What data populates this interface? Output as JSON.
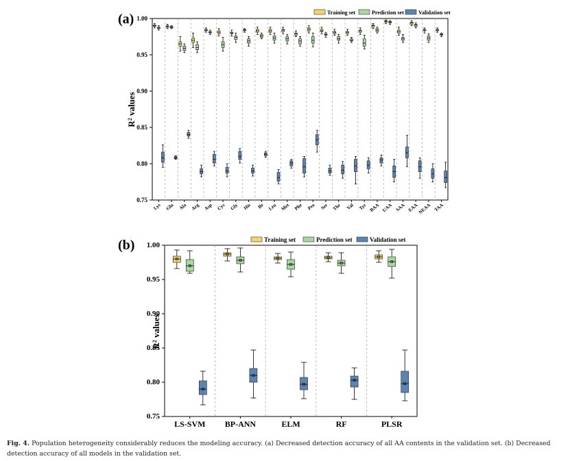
{
  "figure": {
    "caption_lead": "Fig. 4.",
    "caption_text": "Population heterogeneity considerably reduces the modeling accuracy. (a) Decreased detection accuracy of all AA contents in the validation set. (b) Decreased detection accuracy of all models in the validation set."
  },
  "colors": {
    "training": "#f2d46b",
    "prediction": "#a8d8a0",
    "validation": "#5b83b3",
    "axis": "#000000",
    "divider": "#aaaaaa"
  },
  "chart_data": [
    {
      "type": "box",
      "panel": "(a)",
      "ylabel": "R² values",
      "ylabel_base": "R",
      "ylabel_sup": "2",
      "ylabel_rest": " values",
      "ylim": [
        0.75,
        1.0
      ],
      "yticks": [
        "0.75",
        "0.80",
        "0.85",
        "0.90",
        "0.95",
        "1.00"
      ],
      "legend": [
        "Training set",
        "Prediction set",
        "Validation set"
      ],
      "categories": [
        "Lys",
        "Glu",
        "Ala",
        "Arg",
        "Asp",
        "Cys",
        "Gly",
        "His",
        "Ile",
        "Leu",
        "Met",
        "Phe",
        "Pro",
        "Ser",
        "Thr",
        "Val",
        "Tyr",
        "BAA",
        "UAA",
        "SAA",
        "EAA",
        "NEAA",
        "TAA"
      ],
      "series": [
        {
          "name": "Training set",
          "boxes": [
            [
              0.987,
              0.989,
              0.99,
              0.991,
              0.993
            ],
            [
              0.986,
              0.988,
              0.989,
              0.99,
              0.992
            ],
            [
              0.955,
              0.962,
              0.965,
              0.968,
              0.975
            ],
            [
              0.96,
              0.967,
              0.97,
              0.973,
              0.98
            ],
            [
              0.981,
              0.983,
              0.984,
              0.985,
              0.987
            ],
            [
              0.976,
              0.979,
              0.981,
              0.983,
              0.986
            ],
            [
              0.976,
              0.979,
              0.98,
              0.981,
              0.984
            ],
            [
              0.981,
              0.983,
              0.984,
              0.985,
              0.986
            ],
            [
              0.978,
              0.981,
              0.983,
              0.985,
              0.988
            ],
            [
              0.978,
              0.981,
              0.983,
              0.985,
              0.988
            ],
            [
              0.979,
              0.982,
              0.984,
              0.985,
              0.988
            ],
            [
              0.975,
              0.977,
              0.979,
              0.98,
              0.983
            ],
            [
              0.98,
              0.983,
              0.985,
              0.987,
              0.99
            ],
            [
              0.979,
              0.982,
              0.983,
              0.985,
              0.988
            ],
            [
              0.977,
              0.979,
              0.981,
              0.982,
              0.985
            ],
            [
              0.977,
              0.979,
              0.981,
              0.982,
              0.985
            ],
            [
              0.978,
              0.981,
              0.983,
              0.984,
              0.987
            ],
            [
              0.986,
              0.988,
              0.99,
              0.991,
              0.993
            ],
            [
              0.993,
              0.995,
              0.996,
              0.997,
              0.998
            ],
            [
              0.977,
              0.98,
              0.982,
              0.984,
              0.988
            ],
            [
              0.99,
              0.992,
              0.994,
              0.995,
              0.997
            ],
            [
              0.98,
              0.983,
              0.984,
              0.985,
              0.987
            ],
            [
              0.981,
              0.983,
              0.984,
              0.985,
              0.987
            ]
          ]
        },
        {
          "name": "Prediction set",
          "boxes": [
            [
              0.984,
              0.986,
              0.987,
              0.988,
              0.99
            ],
            [
              0.986,
              0.987,
              0.988,
              0.989,
              0.99
            ],
            [
              0.953,
              0.956,
              0.959,
              0.962,
              0.965
            ],
            [
              0.953,
              0.957,
              0.96,
              0.964,
              0.968
            ],
            [
              0.978,
              0.98,
              0.981,
              0.982,
              0.984
            ],
            [
              0.955,
              0.96,
              0.964,
              0.968,
              0.974
            ],
            [
              0.967,
              0.971,
              0.974,
              0.976,
              0.98
            ],
            [
              0.962,
              0.966,
              0.969,
              0.972,
              0.975
            ],
            [
              0.972,
              0.974,
              0.976,
              0.978,
              0.98
            ],
            [
              0.966,
              0.97,
              0.973,
              0.976,
              0.98
            ],
            [
              0.965,
              0.969,
              0.972,
              0.975,
              0.978
            ],
            [
              0.962,
              0.965,
              0.969,
              0.972,
              0.975
            ],
            [
              0.961,
              0.966,
              0.97,
              0.975,
              0.98
            ],
            [
              0.974,
              0.977,
              0.978,
              0.979,
              0.981
            ],
            [
              0.966,
              0.97,
              0.972,
              0.975,
              0.978
            ],
            [
              0.967,
              0.969,
              0.97,
              0.972,
              0.974
            ],
            [
              0.958,
              0.962,
              0.966,
              0.972,
              0.977
            ],
            [
              0.98,
              0.982,
              0.984,
              0.986,
              0.988
            ],
            [
              0.992,
              0.994,
              0.995,
              0.996,
              0.997
            ],
            [
              0.967,
              0.97,
              0.972,
              0.974,
              0.978
            ],
            [
              0.987,
              0.989,
              0.991,
              0.992,
              0.994
            ],
            [
              0.967,
              0.97,
              0.973,
              0.976,
              0.979
            ],
            [
              0.975,
              0.977,
              0.978,
              0.979,
              0.98
            ]
          ]
        },
        {
          "name": "Validation set",
          "boxes": [
            [
              0.795,
              0.802,
              0.808,
              0.816,
              0.826
            ],
            [
              0.806,
              0.807,
              0.808,
              0.81,
              0.811
            ],
            [
              0.835,
              0.838,
              0.84,
              0.843,
              0.846
            ],
            [
              0.782,
              0.786,
              0.789,
              0.793,
              0.798
            ],
            [
              0.797,
              0.801,
              0.806,
              0.813,
              0.817
            ],
            [
              0.782,
              0.787,
              0.79,
              0.795,
              0.8
            ],
            [
              0.801,
              0.806,
              0.81,
              0.817,
              0.821
            ],
            [
              0.783,
              0.787,
              0.79,
              0.794,
              0.798
            ],
            [
              0.809,
              0.811,
              0.813,
              0.815,
              0.817
            ],
            [
              0.772,
              0.776,
              0.781,
              0.788,
              0.792
            ],
            [
              0.794,
              0.797,
              0.801,
              0.804,
              0.806
            ],
            [
              0.782,
              0.787,
              0.796,
              0.807,
              0.81
            ],
            [
              0.816,
              0.826,
              0.833,
              0.84,
              0.846
            ],
            [
              0.784,
              0.787,
              0.79,
              0.794,
              0.798
            ],
            [
              0.78,
              0.786,
              0.791,
              0.798,
              0.803
            ],
            [
              0.772,
              0.789,
              0.797,
              0.806,
              0.81
            ],
            [
              0.787,
              0.793,
              0.798,
              0.804,
              0.808
            ],
            [
              0.797,
              0.801,
              0.805,
              0.808,
              0.812
            ],
            [
              0.775,
              0.781,
              0.789,
              0.797,
              0.806
            ],
            [
              0.796,
              0.808,
              0.815,
              0.823,
              0.839
            ],
            [
              0.78,
              0.789,
              0.796,
              0.804,
              0.808
            ],
            [
              0.775,
              0.78,
              0.786,
              0.793,
              0.8
            ],
            [
              0.767,
              0.774,
              0.781,
              0.79,
              0.802
            ]
          ]
        }
      ]
    },
    {
      "type": "box",
      "panel": "(b)",
      "ylabel": "R² values",
      "ylabel_base": "R",
      "ylabel_sup": "2",
      "ylabel_rest": " values",
      "ylim": [
        0.75,
        1.0
      ],
      "yticks": [
        "0.75",
        "0.80",
        "0.85",
        "0.90",
        "0.95",
        "1.00"
      ],
      "legend": [
        "Training set",
        "Prediction set",
        "Validation set"
      ],
      "categories": [
        "LS-SVM",
        "BP-ANN",
        "ELM",
        "RF",
        "PLSR"
      ],
      "series": [
        {
          "name": "Training set",
          "boxes": [
            [
              0.966,
              0.975,
              0.98,
              0.984,
              0.993
            ],
            [
              0.977,
              0.984,
              0.987,
              0.989,
              0.995
            ],
            [
              0.974,
              0.979,
              0.981,
              0.983,
              0.988
            ],
            [
              0.976,
              0.98,
              0.982,
              0.984,
              0.989
            ],
            [
              0.975,
              0.98,
              0.983,
              0.986,
              0.992
            ]
          ]
        },
        {
          "name": "Prediction set",
          "boxes": [
            [
              0.959,
              0.962,
              0.97,
              0.979,
              0.992
            ],
            [
              0.961,
              0.973,
              0.978,
              0.983,
              0.996
            ],
            [
              0.954,
              0.965,
              0.972,
              0.979,
              0.99
            ],
            [
              0.959,
              0.97,
              0.974,
              0.978,
              0.989
            ],
            [
              0.952,
              0.969,
              0.976,
              0.983,
              0.994
            ]
          ]
        },
        {
          "name": "Validation set",
          "boxes": [
            [
              0.767,
              0.782,
              0.79,
              0.802,
              0.816
            ],
            [
              0.777,
              0.8,
              0.81,
              0.82,
              0.847
            ],
            [
              0.776,
              0.789,
              0.797,
              0.807,
              0.829
            ],
            [
              0.775,
              0.793,
              0.803,
              0.809,
              0.821
            ],
            [
              0.773,
              0.785,
              0.798,
              0.816,
              0.847
            ]
          ]
        }
      ]
    }
  ]
}
